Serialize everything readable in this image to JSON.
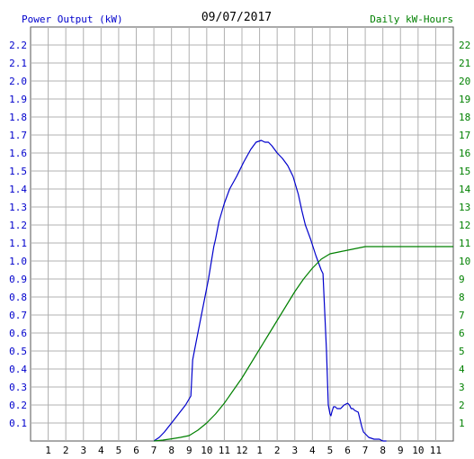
{
  "chart_data": {
    "type": "line",
    "title": "09/07/2017",
    "ylabel_left": "Power Output (kW)",
    "ylabel_right": "Daily kW-Hours",
    "x_ticks": [
      "1",
      "2",
      "3",
      "4",
      "5",
      "6",
      "7",
      "8",
      "9",
      "10",
      "11",
      "12",
      "1",
      "2",
      "3",
      "4",
      "5",
      "6",
      "7",
      "8",
      "9",
      "10",
      "11"
    ],
    "xlim": [
      0,
      24
    ],
    "ylim_left": [
      0,
      2.3
    ],
    "ylim_right": [
      0,
      23
    ],
    "y_ticks_left": [
      "0.1",
      "0.2",
      "0.3",
      "0.4",
      "0.5",
      "0.6",
      "0.7",
      "0.8",
      "0.9",
      "1.0",
      "1.1",
      "1.2",
      "1.3",
      "1.4",
      "1.5",
      "1.6",
      "1.7",
      "1.8",
      "1.9",
      "2.0",
      "2.1",
      "2.2"
    ],
    "y_ticks_right": [
      "1",
      "2",
      "3",
      "4",
      "5",
      "6",
      "7",
      "8",
      "9",
      "10",
      "11",
      "12",
      "13",
      "14",
      "15",
      "16",
      "17",
      "18",
      "19",
      "20",
      "21",
      "22"
    ],
    "grid": true,
    "series": [
      {
        "axis": "left",
        "color": "#0000cc",
        "x": [
          7.0,
          7.3,
          7.6,
          8.0,
          8.4,
          8.8,
          9.1,
          9.2,
          9.3,
          9.5,
          9.8,
          10.1,
          10.4,
          10.5,
          10.7,
          11.0,
          11.3,
          11.7,
          12.1,
          12.5,
          12.8,
          13.1,
          13.3,
          13.5,
          13.7,
          14.0,
          14.3,
          14.6,
          14.9,
          15.2,
          15.4,
          15.6,
          15.9,
          16.2,
          16.5,
          16.6,
          16.8,
          16.9,
          17.0,
          17.05,
          17.1,
          17.2,
          17.3,
          17.4,
          17.6,
          17.8,
          18.0,
          18.1,
          18.2,
          18.3,
          18.4,
          18.6,
          18.8,
          18.9,
          19.0,
          19.2,
          19.5,
          19.8,
          20.0,
          20.2
        ],
        "y": [
          0.0,
          0.02,
          0.05,
          0.1,
          0.15,
          0.2,
          0.25,
          0.45,
          0.5,
          0.6,
          0.75,
          0.9,
          1.08,
          1.12,
          1.22,
          1.32,
          1.4,
          1.47,
          1.55,
          1.62,
          1.66,
          1.67,
          1.66,
          1.66,
          1.64,
          1.6,
          1.57,
          1.53,
          1.47,
          1.37,
          1.28,
          1.2,
          1.12,
          1.03,
          0.95,
          0.93,
          0.5,
          0.2,
          0.15,
          0.14,
          0.16,
          0.19,
          0.19,
          0.18,
          0.18,
          0.2,
          0.21,
          0.2,
          0.18,
          0.18,
          0.17,
          0.16,
          0.08,
          0.05,
          0.04,
          0.02,
          0.01,
          0.01,
          0.0,
          0.0
        ]
      },
      {
        "axis": "right",
        "color": "#008000",
        "x": [
          7.0,
          7.5,
          8.0,
          8.5,
          9.0,
          9.5,
          10.0,
          10.5,
          11.0,
          11.5,
          12.0,
          12.5,
          13.0,
          13.5,
          14.0,
          14.5,
          15.0,
          15.5,
          16.0,
          16.5,
          17.0,
          17.5,
          18.0,
          18.5,
          19.0,
          19.5,
          20.0,
          21.0,
          22.0,
          23.0,
          24.0
        ],
        "y": [
          0.0,
          0.05,
          0.12,
          0.2,
          0.3,
          0.6,
          1.0,
          1.5,
          2.1,
          2.8,
          3.5,
          4.3,
          5.1,
          5.9,
          6.7,
          7.5,
          8.3,
          9.0,
          9.6,
          10.1,
          10.4,
          10.5,
          10.6,
          10.7,
          10.8,
          10.8,
          10.8,
          10.8,
          10.8,
          10.8,
          10.8
        ]
      }
    ]
  }
}
